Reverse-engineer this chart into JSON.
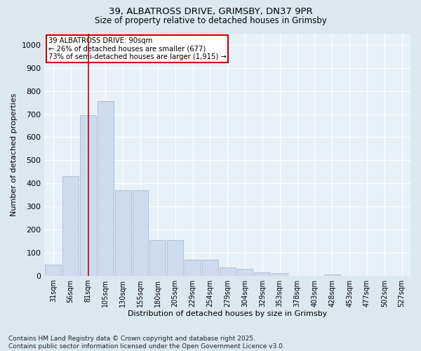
{
  "title1": "39, ALBATROSS DRIVE, GRIMSBY, DN37 9PR",
  "title2": "Size of property relative to detached houses in Grimsby",
  "xlabel": "Distribution of detached houses by size in Grimsby",
  "ylabel": "Number of detached properties",
  "categories": [
    "31sqm",
    "56sqm",
    "81sqm",
    "105sqm",
    "130sqm",
    "155sqm",
    "180sqm",
    "205sqm",
    "229sqm",
    "254sqm",
    "279sqm",
    "304sqm",
    "329sqm",
    "353sqm",
    "378sqm",
    "403sqm",
    "428sqm",
    "453sqm",
    "477sqm",
    "502sqm",
    "527sqm"
  ],
  "values": [
    48,
    430,
    695,
    755,
    370,
    370,
    155,
    155,
    70,
    70,
    35,
    30,
    15,
    10,
    0,
    0,
    5,
    0,
    0,
    0,
    0
  ],
  "bar_color": "#ccdcee",
  "bar_edge_color": "#aabbd0",
  "vline_x": 2,
  "vline_color": "#cc0000",
  "annotation_text": "39 ALBATROSS DRIVE: 90sqm\n← 26% of detached houses are smaller (677)\n73% of semi-detached houses are larger (1,915) →",
  "annotation_box_color": "#ffffff",
  "annotation_box_edge": "#cc0000",
  "ylim": [
    0,
    1050
  ],
  "yticks": [
    0,
    100,
    200,
    300,
    400,
    500,
    600,
    700,
    800,
    900,
    1000
  ],
  "bg_color": "#dce8f0",
  "plot_bg_color": "#e8f0f8",
  "footer": "Contains HM Land Registry data © Crown copyright and database right 2025.\nContains public sector information licensed under the Open Government Licence v3.0.",
  "footer_fontsize": 6.5
}
